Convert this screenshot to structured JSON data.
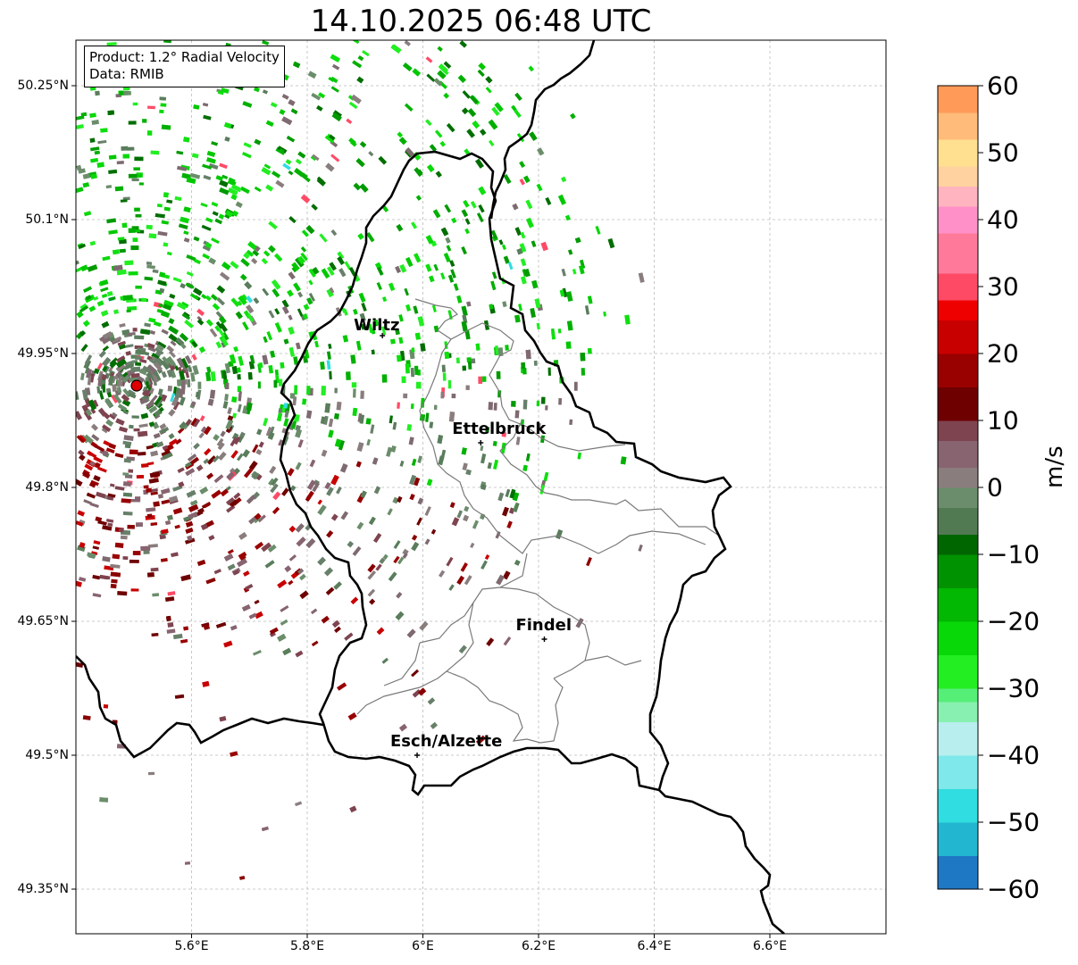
{
  "title": "14.10.2025 06:48 UTC",
  "info": {
    "product": "Product: 1.2° Radial Velocity",
    "data_source": "Data: RMIB"
  },
  "map": {
    "lon_range": [
      5.4,
      6.8
    ],
    "lat_range": [
      49.3,
      50.3
    ],
    "lat_ticks": [
      {
        "value": 50.25,
        "label": "50.25°N"
      },
      {
        "value": 50.1,
        "label": "50.1°N"
      },
      {
        "value": 49.95,
        "label": "49.95°N"
      },
      {
        "value": 49.8,
        "label": "49.8°N"
      },
      {
        "value": 49.65,
        "label": "49.65°N"
      },
      {
        "value": 49.5,
        "label": "49.5°N"
      },
      {
        "value": 49.35,
        "label": "49.35°N"
      }
    ],
    "lon_ticks": [
      {
        "value": 5.6,
        "label": "5.6°E"
      },
      {
        "value": 5.8,
        "label": "5.8°E"
      },
      {
        "value": 6.0,
        "label": "6°E"
      },
      {
        "value": 6.2,
        "label": "6.2°E"
      },
      {
        "value": 6.4,
        "label": "6.4°E"
      },
      {
        "value": 6.6,
        "label": "6.6°E"
      }
    ],
    "radar_site": {
      "lon": 5.505,
      "lat": 49.914
    },
    "cities": [
      {
        "name": "Wiltz",
        "lon": 5.93,
        "lat": 49.97
      },
      {
        "name": "Ettelbruck",
        "lon": 6.1,
        "lat": 49.85
      },
      {
        "name": "Findel",
        "lon": 6.21,
        "lat": 49.63
      },
      {
        "name": "Esch/Alzette",
        "lon": 5.99,
        "lat": 49.5
      }
    ]
  },
  "colorbar": {
    "label": "m/s",
    "range": [
      -60,
      60
    ],
    "ticks": [
      {
        "value": 60,
        "label": "60"
      },
      {
        "value": 50,
        "label": "50"
      },
      {
        "value": 40,
        "label": "40"
      },
      {
        "value": 30,
        "label": "30"
      },
      {
        "value": 20,
        "label": "20"
      },
      {
        "value": 10,
        "label": "10"
      },
      {
        "value": 0,
        "label": "0"
      },
      {
        "value": -10,
        "label": "−10"
      },
      {
        "value": -20,
        "label": "−20"
      },
      {
        "value": -30,
        "label": "−30"
      },
      {
        "value": -40,
        "label": "−40"
      },
      {
        "value": -50,
        "label": "−50"
      },
      {
        "value": -60,
        "label": "−60"
      }
    ],
    "stops": [
      {
        "from": -60,
        "to": -55,
        "color": "#1f78c4"
      },
      {
        "from": -55,
        "to": -50,
        "color": "#23b6d0"
      },
      {
        "from": -50,
        "to": -45,
        "color": "#30dde0"
      },
      {
        "from": -45,
        "to": -40,
        "color": "#7ee8ea"
      },
      {
        "from": -40,
        "to": -35,
        "color": "#b8eeee"
      },
      {
        "from": -35,
        "to": -32,
        "color": "#88f0b0"
      },
      {
        "from": -32,
        "to": -30,
        "color": "#55ee77"
      },
      {
        "from": -30,
        "to": -25,
        "color": "#22ee22"
      },
      {
        "from": -25,
        "to": -20,
        "color": "#08d808"
      },
      {
        "from": -20,
        "to": -15,
        "color": "#02b802"
      },
      {
        "from": -15,
        "to": -10,
        "color": "#009200"
      },
      {
        "from": -10,
        "to": -7,
        "color": "#006600"
      },
      {
        "from": -7,
        "to": -3,
        "color": "#517a52"
      },
      {
        "from": -3,
        "to": 0,
        "color": "#6b8d6b"
      },
      {
        "from": 0,
        "to": 3,
        "color": "#8a7d7d"
      },
      {
        "from": 3,
        "to": 7,
        "color": "#876470"
      },
      {
        "from": 7,
        "to": 10,
        "color": "#7e4450"
      },
      {
        "from": 10,
        "to": 15,
        "color": "#6e0000"
      },
      {
        "from": 15,
        "to": 20,
        "color": "#990000"
      },
      {
        "from": 20,
        "to": 25,
        "color": "#c80000"
      },
      {
        "from": 25,
        "to": 28,
        "color": "#ee0000"
      },
      {
        "from": 28,
        "to": 32,
        "color": "#ff4a66"
      },
      {
        "from": 32,
        "to": 38,
        "color": "#ff7a9a"
      },
      {
        "from": 38,
        "to": 42,
        "color": "#ff90c8"
      },
      {
        "from": 42,
        "to": 45,
        "color": "#ffb4c0"
      },
      {
        "from": 45,
        "to": 48,
        "color": "#ffd2a0"
      },
      {
        "from": 48,
        "to": 52,
        "color": "#ffe090"
      },
      {
        "from": 52,
        "to": 56,
        "color": "#ffbb7a"
      },
      {
        "from": 56,
        "to": 60,
        "color": "#ff9a58"
      }
    ]
  }
}
